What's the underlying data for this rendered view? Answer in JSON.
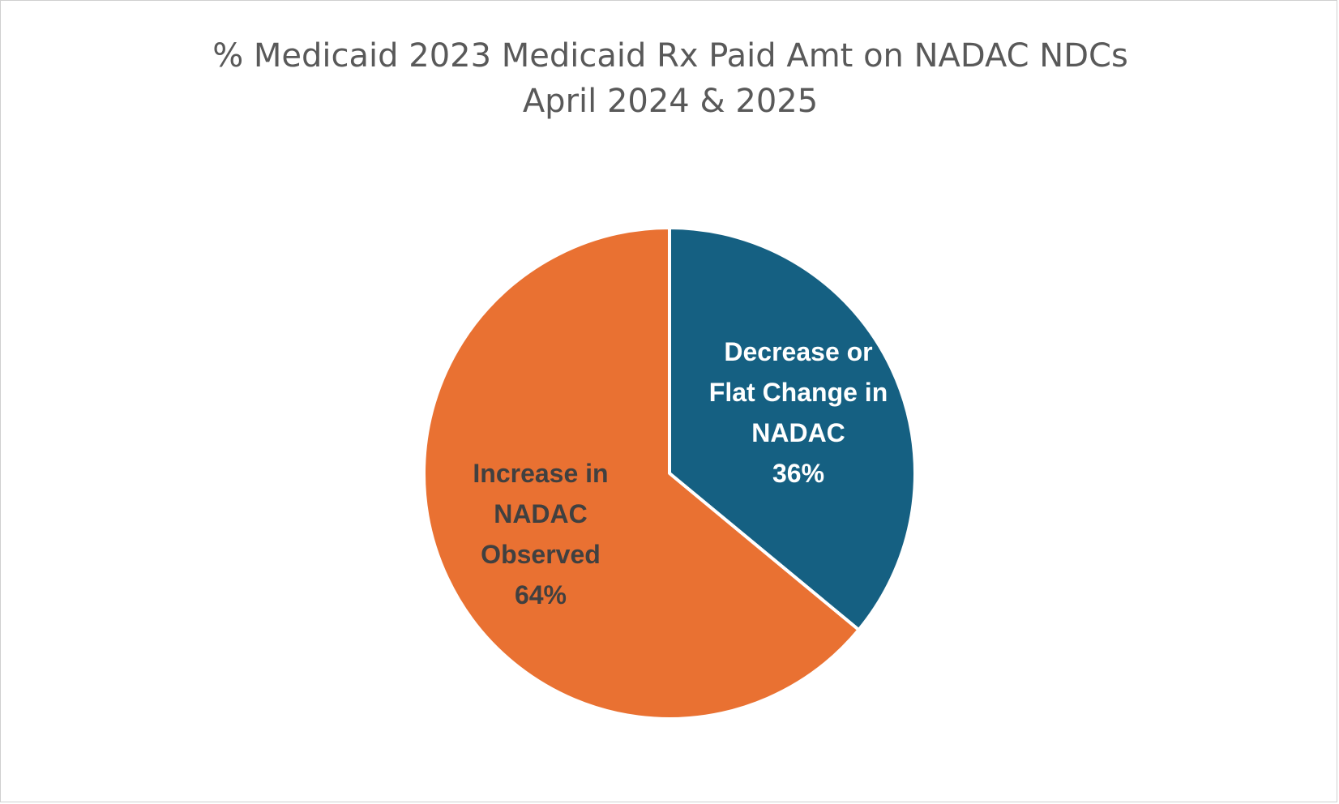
{
  "chart_data": {
    "type": "pie",
    "title_lines": [
      "% Medicaid 2023 Medicaid Rx Paid Amt on NADAC NDCs",
      "April 2024 & 2025"
    ],
    "slices": [
      {
        "name": "Decrease or Flat Change in NADAC",
        "label_lines": [
          "Decrease or",
          "Flat Change in",
          "NADAC"
        ],
        "value": 36,
        "value_label": "36%",
        "color": "#156082",
        "label_color": "#ffffff"
      },
      {
        "name": "Increase in NADAC Observed",
        "label_lines": [
          "Increase in",
          "NADAC",
          "Observed"
        ],
        "value": 64,
        "value_label": "64%",
        "color": "#E97132",
        "label_color": "#404040"
      }
    ],
    "start_angle_deg": 0,
    "direction": "clockwise",
    "legend": "none"
  }
}
